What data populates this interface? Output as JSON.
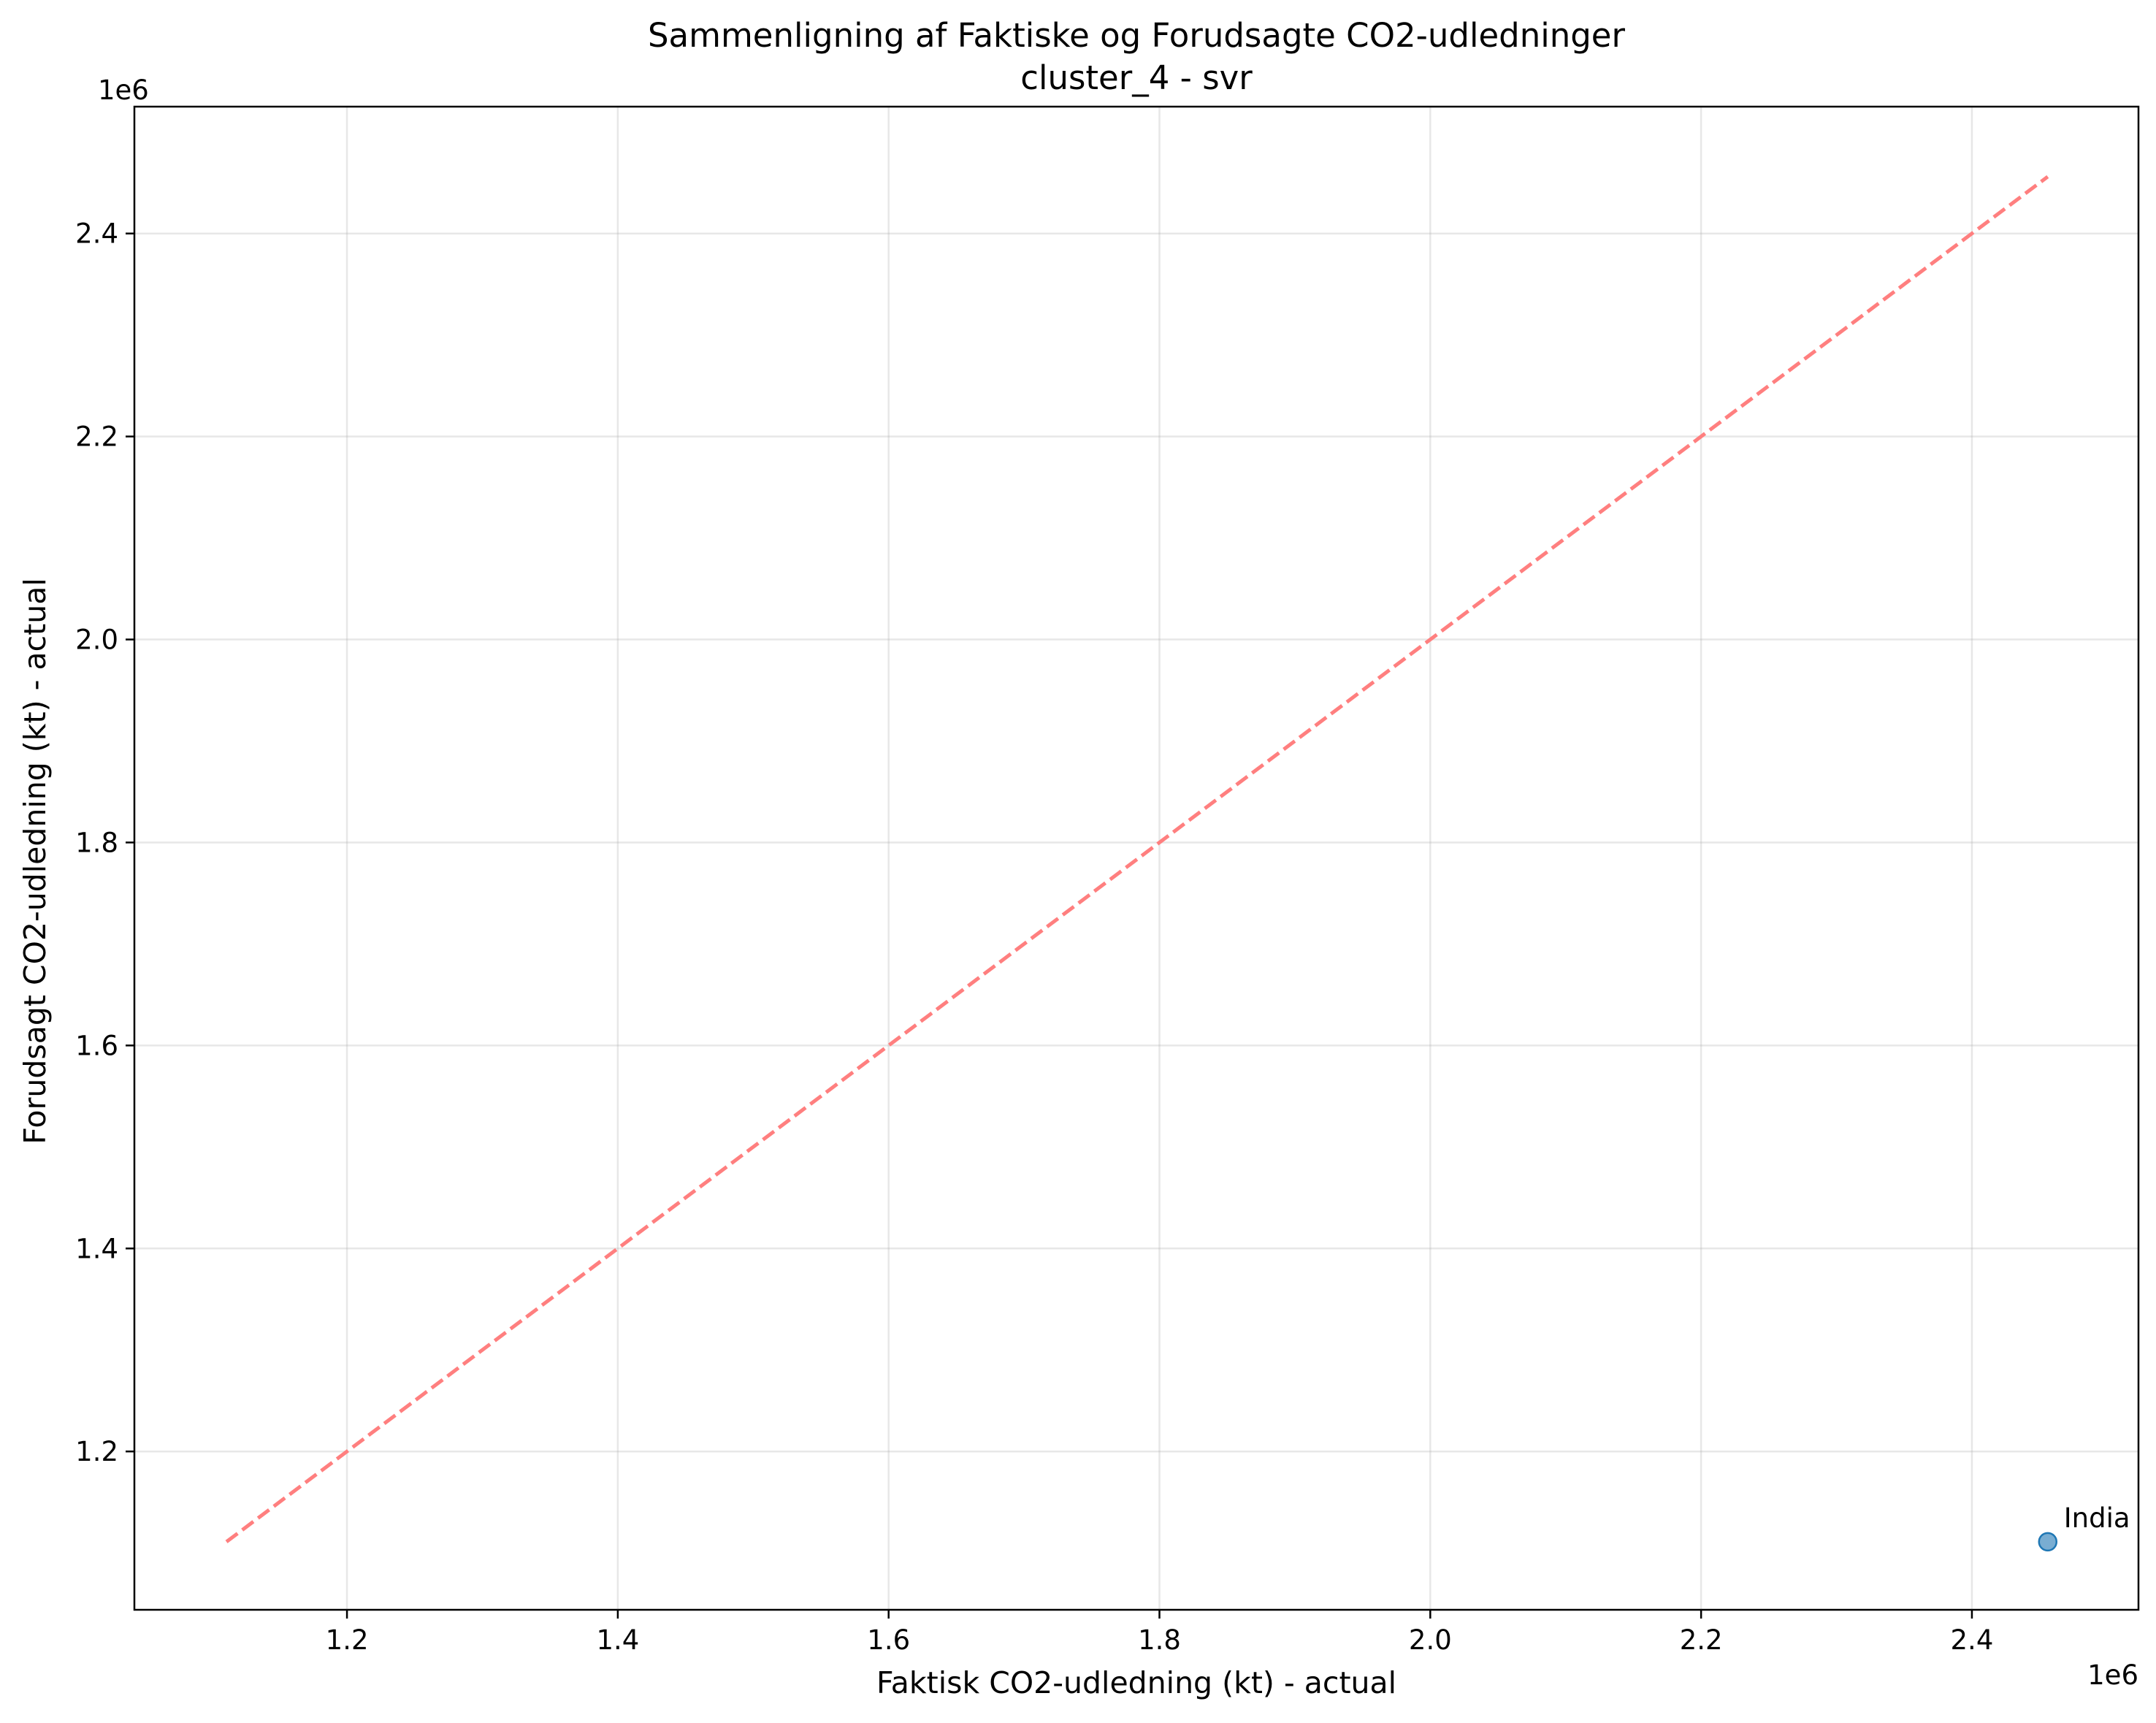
{
  "chart_data": {
    "type": "scatter",
    "title": "Sammenligning af Faktiske og Forudsagte CO2-udledninger",
    "subtitle": "cluster_4 - svr",
    "xlabel": "Faktisk CO2-udledning (kt) - actual",
    "ylabel": "Forudsagt CO2-udledning (kt) - actual",
    "x_offset_label": "1e6",
    "y_offset_label": "1e6",
    "xlim": [
      1043000,
      2523000
    ],
    "ylim": [
      1044000,
      2525000
    ],
    "x_ticks": [
      {
        "value": 1200000,
        "label": "1.2"
      },
      {
        "value": 1400000,
        "label": "1.4"
      },
      {
        "value": 1600000,
        "label": "1.6"
      },
      {
        "value": 1800000,
        "label": "1.8"
      },
      {
        "value": 2000000,
        "label": "2.0"
      },
      {
        "value": 2200000,
        "label": "2.2"
      },
      {
        "value": 2400000,
        "label": "2.4"
      }
    ],
    "y_ticks": [
      {
        "value": 1200000,
        "label": "1.2"
      },
      {
        "value": 1400000,
        "label": "1.4"
      },
      {
        "value": 1600000,
        "label": "1.6"
      },
      {
        "value": 1800000,
        "label": "1.8"
      },
      {
        "value": 2000000,
        "label": "2.0"
      },
      {
        "value": 2200000,
        "label": "2.2"
      },
      {
        "value": 2400000,
        "label": "2.4"
      }
    ],
    "grid": true,
    "points": [
      {
        "x": 2456000,
        "y": 1111000,
        "label": "India",
        "color": "#1f77b4"
      }
    ],
    "reference_line": {
      "from": [
        1111000,
        1111000
      ],
      "to": [
        2456000,
        2456000
      ],
      "color": "#ff7f7f",
      "style": "dashed"
    }
  }
}
